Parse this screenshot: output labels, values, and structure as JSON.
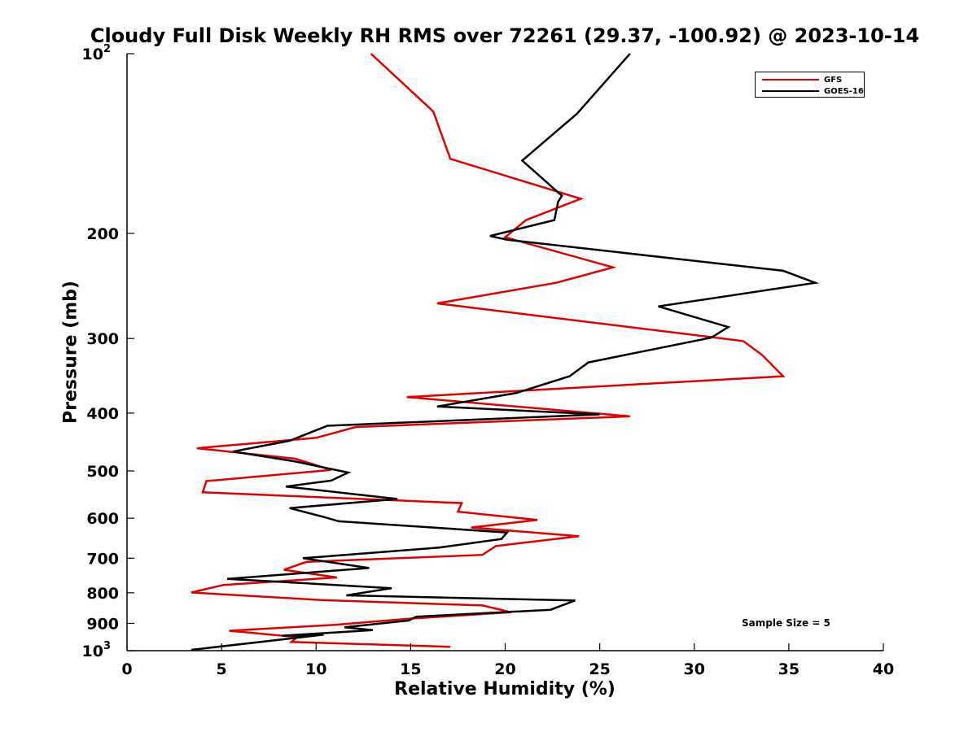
{
  "chart_data": {
    "type": "line",
    "title": "Cloudy Full Disk Weekly RH RMS over 72261 (29.37, -100.92) @ 2023-10-14",
    "xlabel": "Relative Humidity (%)",
    "ylabel": "Pressure (mb)",
    "xlim": [
      0,
      40
    ],
    "ylim": [
      100,
      1000
    ],
    "yscale": "log",
    "y_reversed": true,
    "xticks": [
      "0",
      "5",
      "10",
      "15",
      "20",
      "25",
      "30",
      "35",
      "40"
    ],
    "yticks": [
      {
        "value": 100,
        "label": "10",
        "sup": "2"
      },
      {
        "value": 200,
        "label": "200"
      },
      {
        "value": 300,
        "label": "300"
      },
      {
        "value": 400,
        "label": "400"
      },
      {
        "value": 500,
        "label": "500"
      },
      {
        "value": 600,
        "label": "600"
      },
      {
        "value": 700,
        "label": "700"
      },
      {
        "value": 800,
        "label": "800"
      },
      {
        "value": 900,
        "label": "900"
      },
      {
        "value": 1000,
        "label": "10",
        "sup": "3"
      }
    ],
    "grid": false,
    "legend_position": "top-right",
    "series": [
      {
        "name": "GFS",
        "color": "#e00000",
        "points": [
          [
            12.9,
            100
          ],
          [
            16.2,
            125
          ],
          [
            17.1,
            150
          ],
          [
            24.0,
            175
          ],
          [
            21.1,
            190
          ],
          [
            20.0,
            203
          ],
          [
            25.7,
            228
          ],
          [
            22.7,
            242
          ],
          [
            16.4,
            262
          ],
          [
            32.6,
            303
          ],
          [
            33.6,
            320
          ],
          [
            34.7,
            347
          ],
          [
            14.8,
            376
          ],
          [
            26.6,
            405
          ],
          [
            12.1,
            422
          ],
          [
            10.0,
            440
          ],
          [
            3.7,
            458
          ],
          [
            8.9,
            477
          ],
          [
            10.8,
            498
          ],
          [
            4.2,
            520
          ],
          [
            4.0,
            543
          ],
          [
            17.7,
            566
          ],
          [
            17.5,
            585
          ],
          [
            21.7,
            604
          ],
          [
            18.2,
            622
          ],
          [
            23.9,
            643
          ],
          [
            19.5,
            668
          ],
          [
            18.8,
            691
          ],
          [
            9.5,
            710
          ],
          [
            8.3,
            732
          ],
          [
            11.1,
            754
          ],
          [
            5.1,
            776
          ],
          [
            3.4,
            799
          ],
          [
            10.4,
            823
          ],
          [
            18.8,
            840
          ],
          [
            20.3,
            862
          ],
          [
            14.9,
            884
          ],
          [
            11.0,
            905
          ],
          [
            5.4,
            926
          ],
          [
            9.0,
            949
          ],
          [
            8.7,
            967
          ],
          [
            17.1,
            985
          ]
        ]
      },
      {
        "name": "GOES-16",
        "color": "#000000",
        "points": [
          [
            26.6,
            100
          ],
          [
            23.8,
            126
          ],
          [
            20.9,
            151
          ],
          [
            23.0,
            173
          ],
          [
            22.8,
            177
          ],
          [
            22.6,
            190
          ],
          [
            19.2,
            202
          ],
          [
            20.1,
            205
          ],
          [
            34.7,
            231
          ],
          [
            36.4,
            242
          ],
          [
            28.1,
            265
          ],
          [
            31.8,
            287
          ],
          [
            30.9,
            299
          ],
          [
            24.4,
            329
          ],
          [
            23.4,
            347
          ],
          [
            20.6,
            370
          ],
          [
            16.4,
            390
          ],
          [
            25.0,
            402
          ],
          [
            10.6,
            420
          ],
          [
            8.6,
            445
          ],
          [
            5.6,
            464
          ],
          [
            8.9,
            482
          ],
          [
            11.7,
            503
          ],
          [
            10.8,
            519
          ],
          [
            8.4,
            531
          ],
          [
            14.3,
            557
          ],
          [
            8.6,
            577
          ],
          [
            10.4,
            597
          ],
          [
            11.2,
            607
          ],
          [
            20.1,
            634
          ],
          [
            19.8,
            650
          ],
          [
            16.5,
            672
          ],
          [
            9.3,
            700
          ],
          [
            12.8,
            727
          ],
          [
            5.3,
            758
          ],
          [
            14.0,
            786
          ],
          [
            11.6,
            808
          ],
          [
            23.7,
            824
          ],
          [
            22.4,
            854
          ],
          [
            15.3,
            877
          ],
          [
            14.9,
            890
          ],
          [
            11.5,
            914
          ],
          [
            13.0,
            924
          ],
          [
            8.2,
            944
          ],
          [
            10.4,
            940
          ],
          [
            3.4,
            997
          ]
        ]
      }
    ],
    "annotation": "Sample Size = 5"
  }
}
